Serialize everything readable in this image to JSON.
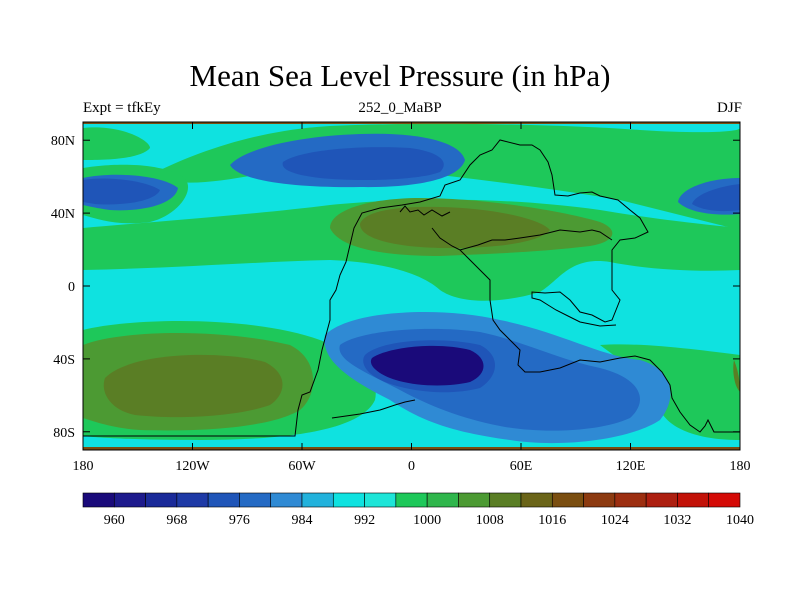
{
  "title": "Mean Sea Level Pressure (in hPa)",
  "subtitle_left": "Expt = tfkEy",
  "subtitle_center": "252_0_MaBP",
  "subtitle_right": "DJF",
  "map": {
    "lon_range": [
      -180,
      180
    ],
    "lat_range": [
      -90,
      90
    ],
    "lon_ticks": [
      {
        "value": -180,
        "label": "180"
      },
      {
        "value": -120,
        "label": "120W"
      },
      {
        "value": -60,
        "label": "60W"
      },
      {
        "value": 0,
        "label": "0"
      },
      {
        "value": 60,
        "label": "60E"
      },
      {
        "value": 120,
        "label": "120E"
      },
      {
        "value": 180,
        "label": "180"
      }
    ],
    "lat_ticks": [
      {
        "value": 80,
        "label": "80N"
      },
      {
        "value": 40,
        "label": "40N"
      },
      {
        "value": 0,
        "label": "0"
      },
      {
        "value": -40,
        "label": "40S"
      },
      {
        "value": -80,
        "label": "80S"
      }
    ]
  },
  "colorbar": {
    "colors": [
      "#1a0a7a",
      "#1d1a8c",
      "#1a2a99",
      "#1e3aa6",
      "#1f55b8",
      "#246ac4",
      "#2f8ad4",
      "#22b2dc",
      "#0fe2e0",
      "#1ee5d8",
      "#1ec85a",
      "#2fb64c",
      "#4c9a33",
      "#5a7e25",
      "#6a6418",
      "#7a4e10",
      "#8c3a10",
      "#9c2e10",
      "#ad1f10",
      "#c21208",
      "#d40a06"
    ],
    "labels": [
      "960",
      "968",
      "976",
      "984",
      "992",
      "1000",
      "1008",
      "1016",
      "1024",
      "1032",
      "1040"
    ]
  }
}
